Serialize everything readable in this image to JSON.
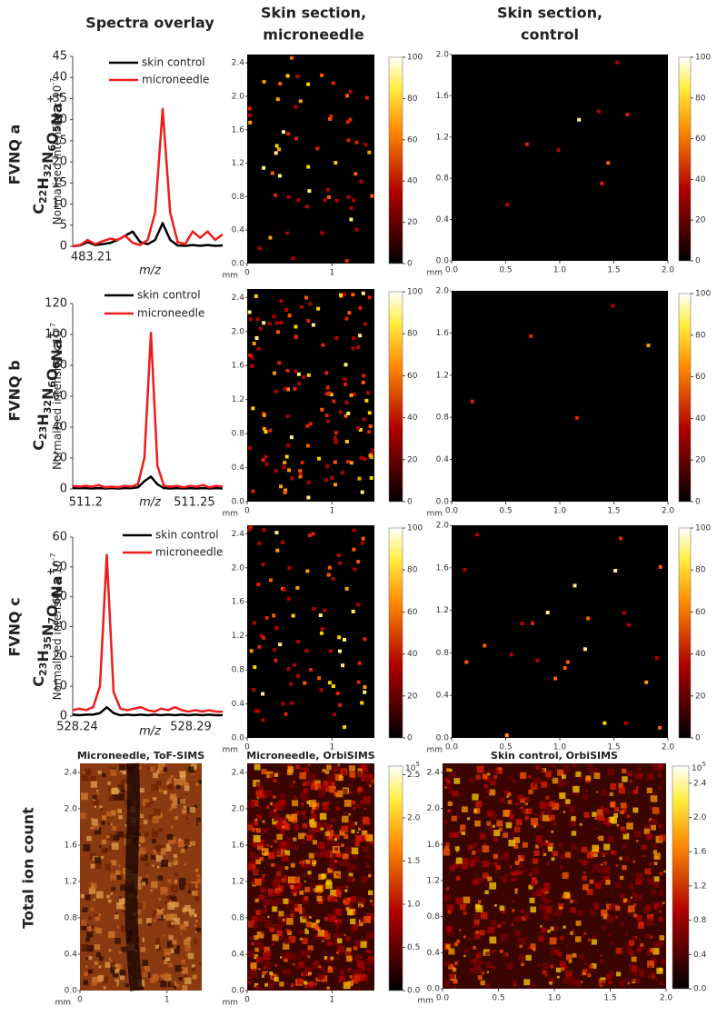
{
  "column_headers": [
    [
      "Spectra overlay"
    ],
    [
      "Skin section,",
      "microneedle"
    ],
    [
      "Skin section,",
      "control"
    ]
  ],
  "rows": [
    {
      "label": "FVNQ a",
      "formula": {
        "atoms": [
          {
            "symbol": "C",
            "count": "22"
          },
          {
            "symbol": "H",
            "count": "32"
          },
          {
            "symbol": "N",
            "count": "6"
          },
          {
            "symbol": "O",
            "count": "5"
          },
          {
            "symbol": "Na"
          }
        ],
        "charge": "+"
      }
    },
    {
      "label": "FVNQ b",
      "formula": {
        "atoms": [
          {
            "symbol": "C",
            "count": "23"
          },
          {
            "symbol": "H",
            "count": "32"
          },
          {
            "symbol": "N",
            "count": "6"
          },
          {
            "symbol": "O",
            "count": "6"
          },
          {
            "symbol": "Na"
          }
        ],
        "charge": "+"
      }
    },
    {
      "label": "FVNQ c",
      "formula": {
        "atoms": [
          {
            "symbol": "C",
            "count": "23"
          },
          {
            "symbol": "H",
            "count": "35"
          },
          {
            "symbol": "N",
            "count": "7"
          },
          {
            "symbol": "O",
            "count": "6"
          },
          {
            "symbol": "Na"
          }
        ],
        "charge": "+"
      }
    }
  ],
  "total_ion_label": "Total ion count",
  "chart_data": [
    {
      "type": "line",
      "ylabel": "Normalised intensity x 10",
      "ylabel_exponent": "-7",
      "xlabel": "m/z",
      "x": [
        483.205,
        483.207,
        483.209,
        483.211,
        483.213,
        483.215,
        483.217,
        483.219,
        483.221,
        483.223,
        483.225,
        483.227,
        483.229,
        483.231,
        483.233,
        483.235,
        483.237,
        483.239,
        483.241,
        483.243,
        483.245
      ],
      "xlim": [
        483.205,
        483.245
      ],
      "xticks": [
        483.21
      ],
      "ylim": [
        0,
        45
      ],
      "yticks": [
        0,
        5,
        10,
        15,
        20,
        25,
        30,
        35,
        40,
        45
      ],
      "series": [
        {
          "name": "skin control",
          "color": "#000000",
          "values": [
            0,
            0.2,
            1,
            0.3,
            0.5,
            0.8,
            1.5,
            2.5,
            3.5,
            1,
            0.5,
            1.5,
            5.5,
            1.5,
            0.2,
            0.1,
            0.3,
            0.1,
            0.3,
            0.1,
            0.2
          ]
        },
        {
          "name": "microneedle",
          "color": "#ee1c1c",
          "values": [
            0,
            0.3,
            1.5,
            0.5,
            1.2,
            1.8,
            1.5,
            2.5,
            0.8,
            0.3,
            1.5,
            8,
            32.5,
            8,
            1,
            0.5,
            3.5,
            2,
            3.5,
            1.5,
            2.8
          ]
        }
      ]
    },
    {
      "type": "line",
      "ylabel": "Normalised intensity x 10",
      "ylabel_exponent": "-7",
      "xlabel": "m/z",
      "x": [
        511.194,
        511.197,
        511.2,
        511.203,
        511.206,
        511.209,
        511.212,
        511.215,
        511.218,
        511.221,
        511.224,
        511.227,
        511.23,
        511.233,
        511.236,
        511.239,
        511.242,
        511.245,
        511.248,
        511.251,
        511.254,
        511.257,
        511.26,
        511.263
      ],
      "xlim": [
        511.194,
        511.263
      ],
      "xticks": [
        511.2,
        511.25
      ],
      "ylim": [
        0,
        120
      ],
      "yticks": [
        0,
        20,
        40,
        60,
        80,
        100,
        120
      ],
      "series": [
        {
          "name": "skin control",
          "color": "#000000",
          "values": [
            0.5,
            0.5,
            0.5,
            0.3,
            0.5,
            0.3,
            0.5,
            0.3,
            0.5,
            0.5,
            1,
            5,
            8,
            3,
            0.5,
            0.3,
            0.5,
            0.3,
            0.5,
            0.3,
            0.5,
            0.3,
            0.5,
            0.3
          ]
        },
        {
          "name": "microneedle",
          "color": "#ee1c1c",
          "values": [
            2,
            1.5,
            2,
            1.5,
            2.5,
            1,
            1.5,
            1,
            2,
            1.5,
            3,
            20,
            101,
            15,
            2,
            1.5,
            2,
            1,
            2,
            1.5,
            2.5,
            1,
            2,
            1.5
          ]
        }
      ]
    },
    {
      "type": "line",
      "ylabel": "Normalised intensity x 10",
      "ylabel_exponent": "-7",
      "xlabel": "m/z",
      "x": [
        528.238,
        528.241,
        528.244,
        528.247,
        528.25,
        528.253,
        528.256,
        528.259,
        528.262,
        528.265,
        528.268,
        528.271,
        528.274,
        528.277,
        528.28,
        528.283,
        528.286,
        528.289,
        528.292,
        528.295,
        528.298,
        528.301,
        528.304
      ],
      "xlim": [
        528.238,
        528.304
      ],
      "xticks": [
        528.24,
        528.29
      ],
      "ylim": [
        0,
        60
      ],
      "yticks": [
        0,
        10,
        20,
        30,
        40,
        50,
        60
      ],
      "series": [
        {
          "name": "skin control",
          "color": "#000000",
          "values": [
            0.5,
            0.3,
            0.5,
            0.5,
            1,
            3,
            1,
            0.3,
            0.5,
            0.3,
            0.5,
            0.3,
            0.5,
            0.3,
            0.5,
            0.3,
            0.5,
            0.3,
            0.5,
            0.3,
            0.5,
            0.3,
            0.3
          ]
        },
        {
          "name": "microneedle",
          "color": "#ee1c1c",
          "values": [
            2,
            2.5,
            2,
            3,
            10,
            54,
            8,
            2.5,
            2,
            2.5,
            3,
            2,
            1.5,
            2.5,
            2,
            3,
            2,
            1.5,
            2,
            1.5,
            2,
            1.5,
            1.5
          ]
        }
      ]
    }
  ],
  "images": [
    {
      "xlabel": "mm",
      "xlim": [
        0,
        1.5
      ],
      "xticks": [
        0,
        1
      ],
      "ylim": [
        0,
        2.5
      ],
      "yticks": [
        {
          "value": 0,
          "label": "0.0"
        },
        {
          "value": 0.4,
          "label": "0.4"
        },
        {
          "value": 0.8,
          "label": "0.8"
        },
        {
          "value": 1.2,
          "label": "1.2"
        },
        {
          "value": 1.6,
          "label": "1.6"
        },
        {
          "value": 2,
          "label": "2.0"
        },
        {
          "value": 2.4,
          "label": "2.4"
        }
      ],
      "colorbar": {
        "ylim": [
          0,
          100
        ],
        "yticks": [
          0,
          20,
          40,
          60,
          80,
          100
        ]
      }
    },
    {
      "xlabel": "mm",
      "xlim": [
        0,
        2
      ],
      "xticks": [
        {
          "value": 0,
          "label": "0.0"
        },
        {
          "value": 0.5,
          "label": "0.5"
        },
        {
          "value": 1,
          "label": "1.0"
        },
        {
          "value": 1.5,
          "label": "1.5"
        },
        {
          "value": 2,
          "label": "2.0"
        }
      ],
      "ylim": [
        0,
        2
      ],
      "yticks": [
        {
          "value": 0,
          "label": "0.0"
        },
        {
          "value": 0.4,
          "label": "0.4"
        },
        {
          "value": 0.8,
          "label": "0.8"
        },
        {
          "value": 1.2,
          "label": "1.2"
        },
        {
          "value": 1.6,
          "label": "1.6"
        },
        {
          "value": 2,
          "label": "2.0"
        }
      ],
      "colorbar": {
        "ylim": [
          0,
          100
        ],
        "yticks": [
          0,
          20,
          40,
          60,
          80,
          100
        ]
      }
    },
    {
      "xlabel": "mm",
      "xlim": [
        0,
        1.5
      ],
      "xticks": [
        0,
        1
      ],
      "ylim": [
        0,
        2.5
      ],
      "yticks": [
        {
          "value": 0,
          "label": "0.0"
        },
        {
          "value": 0.4,
          "label": "0.4"
        },
        {
          "value": 0.8,
          "label": "0.8"
        },
        {
          "value": 1.2,
          "label": "1.2"
        },
        {
          "value": 1.6,
          "label": "1.6"
        },
        {
          "value": 2,
          "label": "2.0"
        },
        {
          "value": 2.4,
          "label": "2.4"
        }
      ],
      "colorbar": {
        "ylim": [
          0,
          100
        ],
        "yticks": [
          0,
          20,
          40,
          60,
          80,
          100
        ]
      }
    },
    {
      "xlabel": "mm",
      "xlim": [
        0,
        2
      ],
      "xticks": [
        {
          "value": 0,
          "label": "0.0"
        },
        {
          "value": 0.5,
          "label": "0.5"
        },
        {
          "value": 1,
          "label": "1.0"
        },
        {
          "value": 1.5,
          "label": "1.5"
        },
        {
          "value": 2,
          "label": "2.0"
        }
      ],
      "ylim": [
        0,
        2
      ],
      "yticks": [
        {
          "value": 0,
          "label": "0.0"
        },
        {
          "value": 0.4,
          "label": "0.4"
        },
        {
          "value": 0.8,
          "label": "0.8"
        },
        {
          "value": 1.2,
          "label": "1.2"
        },
        {
          "value": 1.6,
          "label": "1.6"
        },
        {
          "value": 2,
          "label": "2.0"
        }
      ],
      "colorbar": {
        "ylim": [
          0,
          100
        ],
        "yticks": [
          0,
          20,
          40,
          60,
          80,
          100
        ]
      }
    },
    {
      "xlabel": "mm",
      "xlim": [
        0,
        1.5
      ],
      "xticks": [
        0,
        1
      ],
      "ylim": [
        0,
        2.5
      ],
      "yticks": [
        {
          "value": 0,
          "label": "0.0"
        },
        {
          "value": 0.4,
          "label": "0.4"
        },
        {
          "value": 0.8,
          "label": "0.8"
        },
        {
          "value": 1.2,
          "label": "1.2"
        },
        {
          "value": 1.6,
          "label": "1.6"
        },
        {
          "value": 2,
          "label": "2.0"
        },
        {
          "value": 2.4,
          "label": "2.4"
        }
      ],
      "colorbar": {
        "ylim": [
          0,
          100
        ],
        "yticks": [
          0,
          20,
          40,
          60,
          80,
          100
        ]
      }
    },
    {
      "xlabel": "mm",
      "xlim": [
        0,
        2
      ],
      "xticks": [
        {
          "value": 0,
          "label": "0.0"
        },
        {
          "value": 0.5,
          "label": "0.5"
        },
        {
          "value": 1,
          "label": "1.0"
        },
        {
          "value": 1.5,
          "label": "1.5"
        },
        {
          "value": 2,
          "label": "2.0"
        }
      ],
      "ylim": [
        0,
        2
      ],
      "yticks": [
        {
          "value": 0,
          "label": "0.0"
        },
        {
          "value": 0.4,
          "label": "0.4"
        },
        {
          "value": 0.8,
          "label": "0.8"
        },
        {
          "value": 1.2,
          "label": "1.2"
        },
        {
          "value": 1.6,
          "label": "1.6"
        },
        {
          "value": 2,
          "label": "2.0"
        }
      ],
      "colorbar": {
        "ylim": [
          0,
          100
        ],
        "yticks": [
          0,
          20,
          40,
          60,
          80,
          100
        ]
      }
    },
    {
      "title": "Microneedle, ToF-SIMS",
      "xlabel": "mm",
      "xlim": [
        0,
        1.4
      ],
      "xticks": [
        0,
        1
      ],
      "ylim": [
        0,
        2.5
      ],
      "yticks": [
        {
          "value": 0,
          "label": "0.0"
        },
        {
          "value": 0.4,
          "label": "0.4"
        },
        {
          "value": 0.8,
          "label": "0.8"
        },
        {
          "value": 1.2,
          "label": "1.2"
        },
        {
          "value": 1.6,
          "label": "1.6"
        },
        {
          "value": 2,
          "label": "2.0"
        },
        {
          "value": 2.4,
          "label": "2.4"
        }
      ]
    },
    {
      "title": "Microneedle, OrbiSIMS",
      "xlabel": "mm",
      "xlim": [
        0,
        1.5
      ],
      "xticks": [
        0,
        1
      ],
      "ylim": [
        0,
        2.5
      ],
      "yticks": [
        {
          "value": 0,
          "label": "0.0"
        },
        {
          "value": 0.4,
          "label": "0.4"
        },
        {
          "value": 0.8,
          "label": "0.8"
        },
        {
          "value": 1.2,
          "label": "1.2"
        },
        {
          "value": 1.6,
          "label": "1.6"
        },
        {
          "value": 2,
          "label": "2.0"
        },
        {
          "value": 2.4,
          "label": "2.4"
        }
      ],
      "colorbar": {
        "ylim": [
          0,
          2.6
        ],
        "yticks": [
          {
            "value": 0,
            "label": "0.0"
          },
          {
            "value": 0.5,
            "label": "0.5"
          },
          {
            "value": 1,
            "label": "1.0"
          },
          {
            "value": 1.5,
            "label": "1.5"
          },
          {
            "value": 2,
            "label": "2.0"
          },
          {
            "value": 2.5,
            "label": "2.5"
          }
        ],
        "scale_base": "10",
        "scale_exponent": "5"
      }
    },
    {
      "title": "Skin control, OrbiSIMS",
      "xlabel": "mm",
      "xlim": [
        0,
        2
      ],
      "xticks": [
        {
          "value": 0,
          "label": "0.0"
        },
        {
          "value": 0.5,
          "label": "0.5"
        },
        {
          "value": 1,
          "label": "1.0"
        },
        {
          "value": 1.5,
          "label": "1.5"
        },
        {
          "value": 2,
          "label": "2.0"
        }
      ],
      "ylim": [
        0,
        2.5
      ],
      "yticks": [
        {
          "value": 0,
          "label": "0.0"
        },
        {
          "value": 0.4,
          "label": "0.4"
        },
        {
          "value": 0.8,
          "label": "0.8"
        },
        {
          "value": 1.2,
          "label": "1.2"
        },
        {
          "value": 1.6,
          "label": "1.6"
        },
        {
          "value": 2,
          "label": "2.0"
        },
        {
          "value": 2.4,
          "label": "2.4"
        }
      ],
      "colorbar": {
        "ylim": [
          0,
          2.6
        ],
        "yticks": [
          {
            "value": 0,
            "label": "0.0"
          },
          {
            "value": 0.4,
            "label": "0.4"
          },
          {
            "value": 0.8,
            "label": "0.8"
          },
          {
            "value": 1.2,
            "label": "1.2"
          },
          {
            "value": 1.6,
            "label": "1.6"
          },
          {
            "value": 2,
            "label": "2.0"
          },
          {
            "value": 2.4,
            "label": "2.4"
          }
        ],
        "scale_base": "10",
        "scale_exponent": "5"
      }
    }
  ]
}
